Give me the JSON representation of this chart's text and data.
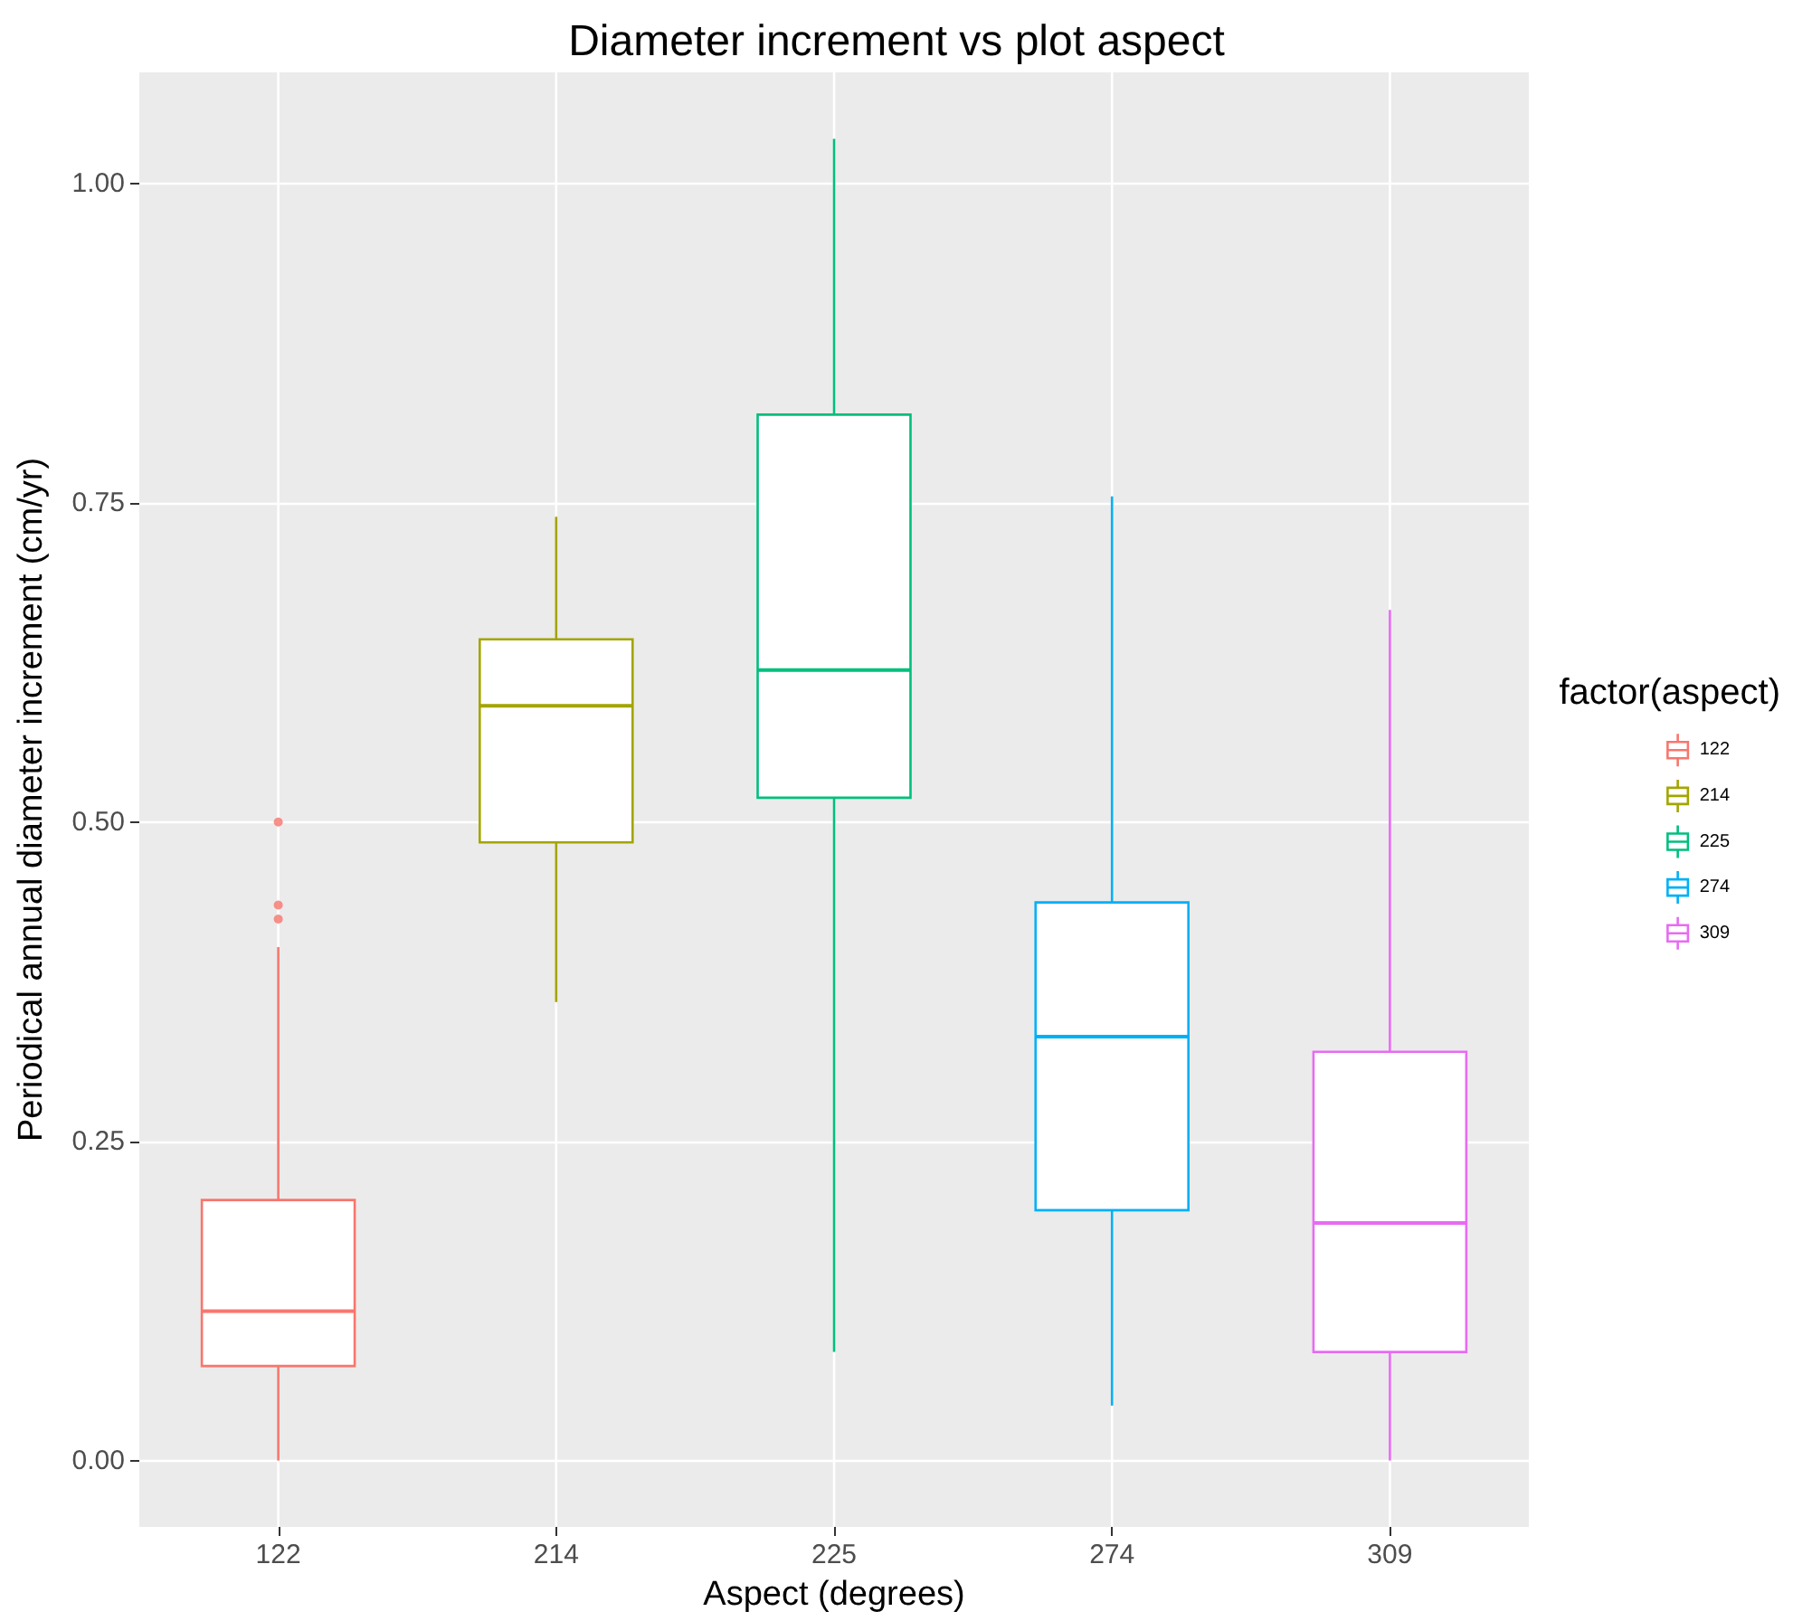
{
  "chart_data": {
    "type": "box",
    "title": "Diameter increment vs plot aspect",
    "xlabel": "Aspect (degrees)",
    "ylabel": "Periodical annual diameter increment (cm/yr)",
    "legend_title": "factor(aspect)",
    "categories": [
      "122",
      "214",
      "225",
      "274",
      "309"
    ],
    "series": [
      {
        "name": "122",
        "color": "#f8766d",
        "boxes": [
          {
            "low": 0.0,
            "q1": 0.074,
            "median": 0.117,
            "q3": 0.204,
            "high": 0.402,
            "outliers": [
              0.5,
              0.435,
              0.424
            ]
          },
          null,
          null,
          null,
          null
        ]
      },
      {
        "name": "214",
        "color": "#a3a500",
        "boxes": [
          null,
          {
            "low": 0.359,
            "q1": 0.484,
            "median": 0.591,
            "q3": 0.643,
            "high": 0.739
          },
          null,
          null,
          null
        ]
      },
      {
        "name": "225",
        "color": "#00bf7d",
        "boxes": [
          null,
          null,
          {
            "low": 0.085,
            "q1": 0.519,
            "median": 0.619,
            "q3": 0.819,
            "high": 1.035
          },
          null,
          null
        ]
      },
      {
        "name": "274",
        "color": "#00b0f6",
        "boxes": [
          null,
          null,
          null,
          {
            "low": 0.043,
            "q1": 0.196,
            "median": 0.332,
            "q3": 0.437,
            "high": 0.755
          },
          null
        ]
      },
      {
        "name": "309",
        "color": "#e76bf3",
        "boxes": [
          null,
          null,
          null,
          null,
          {
            "low": 0.0,
            "q1": 0.085,
            "median": 0.186,
            "q3": 0.32,
            "high": 0.666
          }
        ]
      }
    ],
    "ylim": [
      -0.052,
      1.087
    ],
    "yticks": [
      {
        "value": 0,
        "label": "0.00"
      },
      {
        "value": 0.25,
        "label": "0.25"
      },
      {
        "value": 0.5,
        "label": "0.50"
      },
      {
        "value": 0.75,
        "label": "0.75"
      },
      {
        "value": 1,
        "label": "1.00"
      }
    ],
    "grid": true,
    "legend": "right"
  }
}
